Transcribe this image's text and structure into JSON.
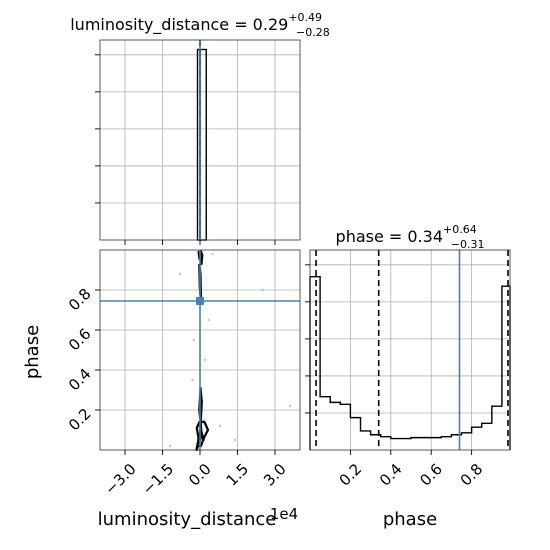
{
  "chart_data": {
    "type": "corner",
    "parameters": [
      "luminosity_distance",
      "phase"
    ],
    "truth_color": "#4682b4",
    "panels": [
      {
        "id": "hist-luminosity_distance",
        "type": "histogram",
        "title_label": "luminosity_distance = 0.29",
        "title_sup": "+0.49",
        "title_sub": "−0.28",
        "xlim": [
          -40000,
          40000
        ],
        "xticks": [
          -30000,
          -15000,
          0,
          15000,
          30000
        ],
        "yticks_count": 5,
        "bins": [
          {
            "x0": -1000,
            "x1": 0,
            "h": 1.0
          },
          {
            "x0": 0,
            "x1": 2500,
            "h": 1.0
          }
        ],
        "ymax": 1.0,
        "quantile_lines": [
          0,
          0
        ],
        "truth": 0
      },
      {
        "id": "hist-phase",
        "type": "histogram",
        "title_label": "phase = 0.34",
        "title_sup": "+0.64",
        "title_sub": "−0.31",
        "xlabel": "phase",
        "xlim": [
          0.0,
          0.99
        ],
        "xticks": [
          0.2,
          0.4,
          0.6,
          0.8
        ],
        "xtick_labels": [
          "0.2",
          "0.4",
          "0.6",
          "0.8"
        ],
        "edges": [
          0.0,
          0.05,
          0.1,
          0.15,
          0.2,
          0.25,
          0.3,
          0.35,
          0.4,
          0.45,
          0.5,
          0.55,
          0.6,
          0.65,
          0.7,
          0.75,
          0.8,
          0.85,
          0.9,
          0.95,
          0.99
        ],
        "counts": [
          0.91,
          0.28,
          0.25,
          0.24,
          0.17,
          0.1,
          0.08,
          0.07,
          0.06,
          0.06,
          0.065,
          0.065,
          0.065,
          0.07,
          0.08,
          0.09,
          0.12,
          0.14,
          0.23,
          0.86
        ],
        "ymax": 1.0,
        "quantile_lines": [
          0.03,
          0.34,
          0.98
        ],
        "truth": 0.74
      },
      {
        "id": "scatter-distance-phase",
        "type": "2d",
        "xlabel": "luminosity_distance",
        "ylabel": "phase",
        "offset_text": "1e4",
        "xlim": [
          -40000,
          40000
        ],
        "ylim": [
          0.0,
          1.0
        ],
        "xticks": [
          -30000,
          -15000,
          0,
          15000,
          30000
        ],
        "xtick_labels": [
          "−3.0",
          "−1.5",
          "0.0",
          "1.5",
          "3.0"
        ],
        "yticks": [
          0.2,
          0.4,
          0.6,
          0.8
        ],
        "ytick_labels": [
          "0.2",
          "0.4",
          "0.6",
          "0.8"
        ],
        "truth": {
          "x": 0,
          "y": 0.745
        },
        "points": [
          {
            "x": -8000,
            "y": 0.88
          },
          {
            "x": 5000,
            "y": 0.98
          },
          {
            "x": 25000,
            "y": 0.8
          },
          {
            "x": 8000,
            "y": 0.12
          },
          {
            "x": -12000,
            "y": 0.02
          },
          {
            "x": 36000,
            "y": 0.22
          },
          {
            "x": 14000,
            "y": 0.05
          },
          {
            "x": -3000,
            "y": 0.35
          },
          {
            "x": 3500,
            "y": 0.65
          },
          {
            "x": -2500,
            "y": 0.55
          },
          {
            "x": 2000,
            "y": 0.45
          },
          {
            "x": 1500,
            "y": 0.15
          }
        ],
        "contours": [
          {
            "x": [
              -1200,
              -600,
              -1300,
              -200,
              1800,
              3200,
              1500,
              1400,
              600,
              1200,
              400,
              -1000,
              -1400,
              -800,
              -1200
            ],
            "y": [
              0.0,
              0.06,
              0.11,
              0.14,
              0.14,
              0.1,
              0.06,
              0.05,
              0.09,
              0.05,
              0.02,
              0.02,
              0.0,
              0.04,
              0.0
            ]
          },
          {
            "x": [
              -600,
              0,
              700,
              200,
              -300,
              300,
              600,
              -300,
              -600
            ],
            "y": [
              0.03,
              0.08,
              0.24,
              0.31,
              0.2,
              0.13,
              0.08,
              0.04,
              0.03
            ]
          },
          {
            "x": [
              -600,
              -100,
              600,
              900,
              300,
              -200,
              -600
            ],
            "y": [
              0.995,
              0.96,
              0.93,
              0.975,
              0.995,
              0.955,
              0.995
            ]
          },
          {
            "x": [
              -300,
              200,
              400,
              -100,
              -300
            ],
            "y": [
              0.93,
              0.88,
              0.74,
              0.81,
              0.93
            ]
          }
        ]
      }
    ]
  }
}
